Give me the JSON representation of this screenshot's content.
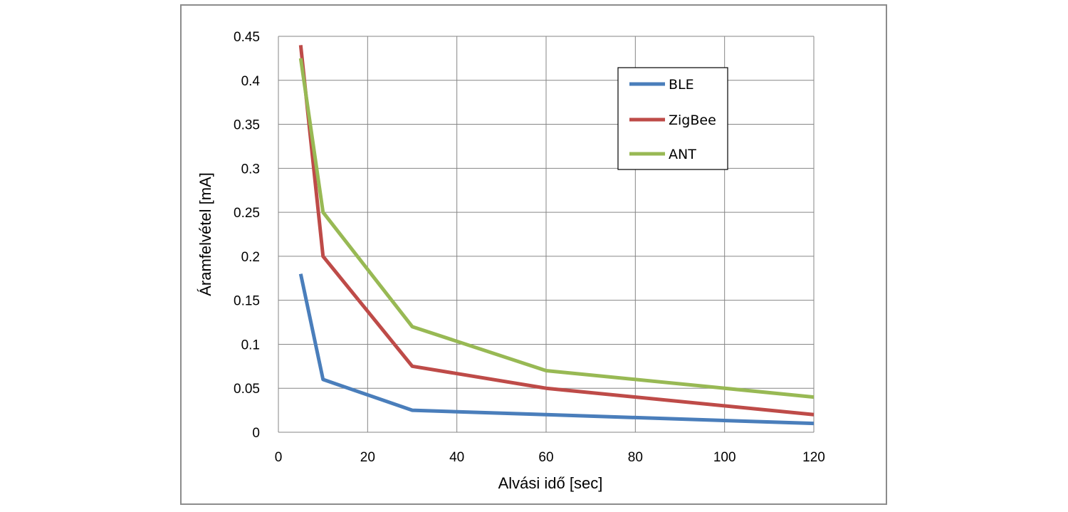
{
  "chart_data": {
    "type": "line",
    "title": "",
    "xlabel": "Alvási idő  [sec]",
    "ylabel": "Áramfelvétel  [mA]",
    "xlim": [
      0,
      120
    ],
    "ylim": [
      0,
      0.45
    ],
    "xticks": [
      0,
      20,
      40,
      60,
      80,
      100,
      120
    ],
    "xtick_labels": [
      "0",
      "20",
      "40",
      "60",
      "80",
      "100",
      "120"
    ],
    "yticks": [
      0,
      0.05,
      0.1,
      0.15,
      0.2,
      0.25,
      0.3,
      0.35,
      0.4,
      0.45
    ],
    "ytick_labels": [
      "0",
      "0.05",
      "0.1",
      "0.15",
      "0.2",
      "0.25",
      "0.3",
      "0.35",
      "0.4",
      "0.45"
    ],
    "grid": true,
    "legend_position": "top-right",
    "x": [
      5,
      10,
      30,
      60,
      120
    ],
    "series": [
      {
        "name": "BLE",
        "color": "#4a7ebb",
        "values": [
          0.18,
          0.06,
          0.025,
          0.02,
          0.01
        ]
      },
      {
        "name": "ZigBee",
        "color": "#be4b48",
        "values": [
          0.44,
          0.2,
          0.075,
          0.05,
          0.02
        ]
      },
      {
        "name": "ANT",
        "color": "#98b954",
        "values": [
          0.425,
          0.25,
          0.12,
          0.07,
          0.04
        ]
      }
    ]
  }
}
